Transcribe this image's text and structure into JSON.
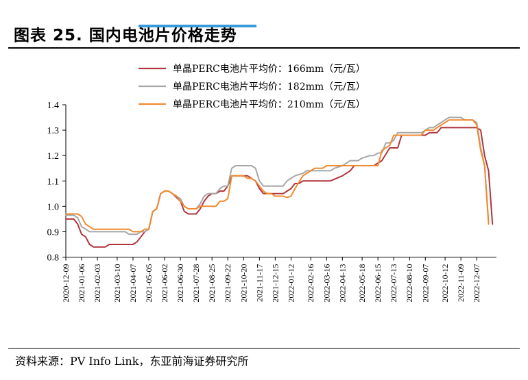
{
  "header": {
    "title": "图表 25. 国内电池片价格走势"
  },
  "source": {
    "text": "资料来源：PV Info Link，东亚前海证券研究所"
  },
  "colors": {
    "s166": "#b0343c",
    "s182": "#a6a6a6",
    "s210": "#f08a30"
  },
  "chart_data": {
    "type": "line",
    "title": "国内电池片价格走势",
    "xlabel": "",
    "ylabel": "",
    "ylim": [
      0.8,
      1.4
    ],
    "yticks": [
      "0.8",
      "0.9",
      "1.0",
      "1.1",
      "1.2",
      "1.3",
      "1.4"
    ],
    "grid": false,
    "legend_position": "top-right",
    "x_tick_labels": [
      "2020-12-09",
      "2021-01-06",
      "2021-02-03",
      "2021-03-10",
      "2021-04-07",
      "2021-05-05",
      "2021-06-02",
      "2021-06-30",
      "2021-07-28",
      "2021-08-25",
      "2021-09-22",
      "2021-10-20",
      "2021-11-17",
      "2021-12-15",
      "2022-01-12",
      "2022-02-16",
      "2022-03-16",
      "2022-04-13",
      "2022-05-18",
      "2022-06-15",
      "2022-07-13",
      "2022-08-10",
      "2022-09-07",
      "2022-10-12",
      "2022-11-09",
      "2022-12-07"
    ],
    "x_tick_week_index": [
      0,
      4,
      8,
      13,
      17,
      21,
      25,
      29,
      33,
      37,
      41,
      45,
      49,
      53,
      57,
      62,
      66,
      70,
      75,
      79,
      83,
      87,
      91,
      96,
      100,
      104
    ],
    "x_max_index": 109,
    "series": [
      {
        "name": "单晶PERC电池片平均价：166mm（元/瓦）",
        "color_key": "s166",
        "points": [
          [
            0,
            0.95
          ],
          [
            2,
            0.95
          ],
          [
            3,
            0.93
          ],
          [
            4,
            0.89
          ],
          [
            5,
            0.88
          ],
          [
            6,
            0.85
          ],
          [
            7,
            0.84
          ],
          [
            10,
            0.84
          ],
          [
            11,
            0.85
          ],
          [
            17,
            0.85
          ],
          [
            18,
            0.86
          ],
          [
            19,
            0.88
          ],
          [
            20,
            0.9
          ],
          [
            21,
            0.91
          ],
          [
            22,
            0.98
          ],
          [
            23,
            0.99
          ],
          [
            24,
            1.05
          ],
          [
            25,
            1.06
          ],
          [
            26,
            1.06
          ],
          [
            27,
            1.05
          ],
          [
            29,
            1.02
          ],
          [
            30,
            0.98
          ],
          [
            31,
            0.97
          ],
          [
            33,
            0.97
          ],
          [
            34,
            0.99
          ],
          [
            35,
            1.02
          ],
          [
            36,
            1.04
          ],
          [
            37,
            1.05
          ],
          [
            38,
            1.05
          ],
          [
            39,
            1.06
          ],
          [
            40,
            1.06
          ],
          [
            41,
            1.08
          ],
          [
            42,
            1.12
          ],
          [
            46,
            1.12
          ],
          [
            48,
            1.1
          ],
          [
            49,
            1.07
          ],
          [
            50,
            1.05
          ],
          [
            55,
            1.05
          ],
          [
            56,
            1.06
          ],
          [
            57,
            1.07
          ],
          [
            58,
            1.09
          ],
          [
            59,
            1.09
          ],
          [
            60,
            1.1
          ],
          [
            61,
            1.1
          ],
          [
            67,
            1.1
          ],
          [
            70,
            1.12
          ],
          [
            71,
            1.13
          ],
          [
            72,
            1.14
          ],
          [
            73,
            1.16
          ],
          [
            78,
            1.16
          ],
          [
            80,
            1.18
          ],
          [
            82,
            1.23
          ],
          [
            84,
            1.23
          ],
          [
            85,
            1.28
          ],
          [
            91,
            1.28
          ],
          [
            92,
            1.29
          ],
          [
            94,
            1.29
          ],
          [
            95,
            1.31
          ],
          [
            103,
            1.31
          ],
          [
            104,
            1.31
          ],
          [
            105,
            1.3
          ],
          [
            106,
            1.2
          ],
          [
            107,
            1.14
          ],
          [
            108,
            0.93
          ]
        ]
      },
      {
        "name": "单晶PERC电池片平均价：182mm（元/瓦）",
        "color_key": "s182",
        "points": [
          [
            0,
            0.965
          ],
          [
            2,
            0.965
          ],
          [
            3,
            0.955
          ],
          [
            4,
            0.92
          ],
          [
            5,
            0.91
          ],
          [
            6,
            0.9
          ],
          [
            15,
            0.9
          ],
          [
            16,
            0.89
          ],
          [
            18,
            0.89
          ],
          [
            19,
            0.9
          ],
          [
            20,
            0.9
          ],
          [
            21,
            0.91
          ],
          [
            22,
            0.98
          ],
          [
            23,
            0.99
          ],
          [
            24,
            1.05
          ],
          [
            25,
            1.06
          ],
          [
            26,
            1.06
          ],
          [
            28,
            1.04
          ],
          [
            29,
            1.03
          ],
          [
            30,
            1.0
          ],
          [
            31,
            0.99
          ],
          [
            33,
            0.99
          ],
          [
            34,
            1.01
          ],
          [
            35,
            1.04
          ],
          [
            36,
            1.05
          ],
          [
            38,
            1.05
          ],
          [
            39,
            1.07
          ],
          [
            40,
            1.08
          ],
          [
            41,
            1.08
          ],
          [
            42,
            1.15
          ],
          [
            43,
            1.16
          ],
          [
            47,
            1.16
          ],
          [
            48,
            1.15
          ],
          [
            49,
            1.1
          ],
          [
            50,
            1.08
          ],
          [
            55,
            1.08
          ],
          [
            56,
            1.1
          ],
          [
            57,
            1.11
          ],
          [
            58,
            1.12
          ],
          [
            60,
            1.13
          ],
          [
            61,
            1.14
          ],
          [
            67,
            1.14
          ],
          [
            68,
            1.15
          ],
          [
            70,
            1.16
          ],
          [
            71,
            1.17
          ],
          [
            72,
            1.18
          ],
          [
            74,
            1.18
          ],
          [
            75,
            1.19
          ],
          [
            77,
            1.2
          ],
          [
            78,
            1.2
          ],
          [
            79,
            1.21
          ],
          [
            80,
            1.21
          ],
          [
            81,
            1.25
          ],
          [
            82,
            1.25
          ],
          [
            83,
            1.26
          ],
          [
            84,
            1.29
          ],
          [
            90,
            1.29
          ],
          [
            92,
            1.31
          ],
          [
            93,
            1.31
          ],
          [
            95,
            1.33
          ],
          [
            96,
            1.34
          ],
          [
            97,
            1.35
          ],
          [
            100,
            1.35
          ],
          [
            101,
            1.34
          ],
          [
            103,
            1.34
          ],
          [
            104,
            1.33
          ],
          [
            105,
            1.23
          ],
          [
            106,
            1.16
          ],
          [
            107,
            0.94
          ]
        ]
      },
      {
        "name": "单晶PERC电池片平均价：210mm（元/瓦）",
        "color_key": "s210",
        "points": [
          [
            0,
            0.97
          ],
          [
            3,
            0.97
          ],
          [
            4,
            0.96
          ],
          [
            5,
            0.93
          ],
          [
            6,
            0.92
          ],
          [
            7,
            0.91
          ],
          [
            16,
            0.91
          ],
          [
            17,
            0.9
          ],
          [
            19,
            0.9
          ],
          [
            20,
            0.91
          ],
          [
            21,
            0.91
          ],
          [
            22,
            0.98
          ],
          [
            23,
            0.99
          ],
          [
            24,
            1.05
          ],
          [
            25,
            1.06
          ],
          [
            26,
            1.06
          ],
          [
            28,
            1.04
          ],
          [
            30,
            1.0
          ],
          [
            31,
            0.99
          ],
          [
            33,
            0.99
          ],
          [
            34,
            1.0
          ],
          [
            38,
            1.0
          ],
          [
            39,
            1.02
          ],
          [
            40,
            1.02
          ],
          [
            41,
            1.03
          ],
          [
            42,
            1.12
          ],
          [
            45,
            1.12
          ],
          [
            46,
            1.11
          ],
          [
            47,
            1.11
          ],
          [
            48,
            1.1
          ],
          [
            49,
            1.08
          ],
          [
            50,
            1.06
          ],
          [
            51,
            1.05
          ],
          [
            52,
            1.05
          ],
          [
            53,
            1.04
          ],
          [
            54,
            1.04
          ],
          [
            55,
            1.04
          ],
          [
            56,
            1.035
          ],
          [
            57,
            1.04
          ],
          [
            58,
            1.07
          ],
          [
            60,
            1.12
          ],
          [
            61,
            1.13
          ],
          [
            62,
            1.14
          ],
          [
            63,
            1.15
          ],
          [
            64,
            1.15
          ],
          [
            65,
            1.15
          ],
          [
            66,
            1.16
          ],
          [
            73,
            1.16
          ],
          [
            79,
            1.16
          ],
          [
            80,
            1.22
          ],
          [
            82,
            1.24
          ],
          [
            83,
            1.28
          ],
          [
            90,
            1.28
          ],
          [
            91,
            1.3
          ],
          [
            93,
            1.3
          ],
          [
            94,
            1.31
          ],
          [
            95,
            1.32
          ],
          [
            96,
            1.33
          ],
          [
            97,
            1.34
          ],
          [
            103,
            1.34
          ],
          [
            104,
            1.32
          ],
          [
            105,
            1.22
          ],
          [
            106,
            1.16
          ],
          [
            107,
            0.93
          ]
        ]
      }
    ]
  }
}
